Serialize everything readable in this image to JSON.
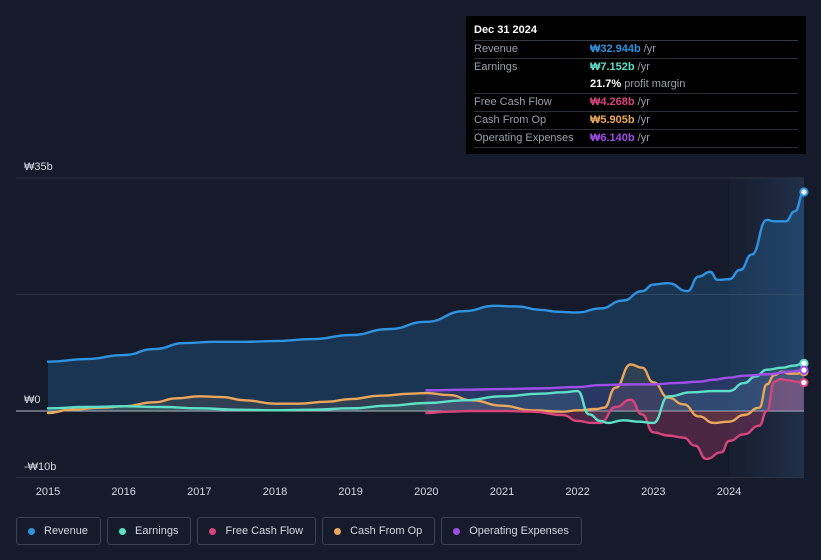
{
  "tooltip": {
    "date": "Dec 31 2024",
    "rows": [
      {
        "label": "Revenue",
        "value": "₩32.944b",
        "unit": "/yr"
      },
      {
        "label": "Earnings",
        "value": "₩7.152b",
        "unit": "/yr"
      },
      {
        "label": "",
        "value": "21.7%",
        "unit": "profit margin"
      },
      {
        "label": "Free Cash Flow",
        "value": "₩4.268b",
        "unit": "/yr"
      },
      {
        "label": "Cash From Op",
        "value": "₩5.905b",
        "unit": "/yr"
      },
      {
        "label": "Operating Expenses",
        "value": "₩6.140b",
        "unit": "/yr"
      }
    ]
  },
  "colors": {
    "revenue": "#2e93e0",
    "earnings": "#5ee0c8",
    "free_cash_flow": "#d6457c",
    "cash_from_op": "#eaa65a",
    "operating_expenses": "#9f4ee8"
  },
  "chart_data": {
    "type": "line",
    "title": "",
    "xlabel": "",
    "ylabel": "",
    "y_tick_labels": [
      "₩35b",
      "₩0",
      "-₩10b"
    ],
    "x_tick_labels": [
      "2015",
      "2016",
      "2017",
      "2018",
      "2019",
      "2020",
      "2021",
      "2022",
      "2023",
      "2024"
    ],
    "x_ticks": [
      2015,
      2016,
      2017,
      2018,
      2019,
      2020,
      2021,
      2022,
      2023,
      2024
    ],
    "ylim": [
      -10,
      35
    ],
    "xlim": [
      2014.55,
      2024.99
    ],
    "highlight_start": 2024.0,
    "series": [
      {
        "name": "Revenue",
        "key": "revenue",
        "x": [
          2015.0,
          2015.5,
          2016.0,
          2016.4,
          2016.8,
          2017.2,
          2017.6,
          2018.0,
          2018.5,
          2019.0,
          2019.5,
          2020.0,
          2020.5,
          2020.9,
          2021.2,
          2021.5,
          2021.75,
          2022.0,
          2022.3,
          2022.6,
          2022.85,
          2023.0,
          2023.2,
          2023.45,
          2023.6,
          2023.75,
          2023.85,
          2024.0,
          2024.15,
          2024.3,
          2024.5,
          2024.6,
          2024.75,
          2024.87,
          2024.99
        ],
        "y": [
          7.4,
          7.8,
          8.4,
          9.3,
          10.2,
          10.4,
          10.4,
          10.5,
          10.8,
          11.4,
          12.3,
          13.4,
          15.0,
          15.8,
          15.7,
          15.2,
          14.9,
          14.8,
          15.4,
          16.6,
          18.0,
          19.0,
          19.2,
          18.0,
          20.2,
          20.9,
          19.7,
          19.8,
          21.2,
          23.5,
          28.7,
          28.5,
          28.5,
          30.0,
          32.9
        ]
      },
      {
        "name": "Earnings",
        "key": "earnings",
        "x": [
          2015.0,
          2015.5,
          2016.0,
          2016.5,
          2017.0,
          2017.5,
          2018.0,
          2018.5,
          2019.0,
          2019.5,
          2020.0,
          2020.5,
          2021.0,
          2021.5,
          2021.8,
          2022.0,
          2022.15,
          2022.3,
          2022.4,
          2022.6,
          2022.8,
          2023.0,
          2023.2,
          2023.5,
          2023.8,
          2024.0,
          2024.2,
          2024.35,
          2024.5,
          2024.7,
          2024.85,
          2024.99
        ],
        "y": [
          0.4,
          0.6,
          0.7,
          0.6,
          0.4,
          0.2,
          0.1,
          0.2,
          0.4,
          0.8,
          1.2,
          1.6,
          2.2,
          2.6,
          2.8,
          3.0,
          -0.5,
          -1.5,
          -1.8,
          -1.4,
          -1.6,
          -1.8,
          2.2,
          2.8,
          3.0,
          3.0,
          4.2,
          5.2,
          6.2,
          6.5,
          6.8,
          7.15
        ]
      },
      {
        "name": "Free Cash Flow",
        "key": "free_cash_flow",
        "x": [
          2020.0,
          2020.3,
          2020.6,
          2021.0,
          2021.4,
          2021.8,
          2022.0,
          2022.2,
          2022.3,
          2022.5,
          2022.7,
          2022.85,
          2023.0,
          2023.2,
          2023.4,
          2023.55,
          2023.7,
          2023.9,
          2024.0,
          2024.2,
          2024.4,
          2024.5,
          2024.6,
          2024.68,
          2024.78,
          2024.9,
          2024.99
        ],
        "y": [
          -0.3,
          -0.1,
          0.0,
          0.0,
          -0.1,
          -0.6,
          -1.5,
          -1.8,
          -1.8,
          0.6,
          1.7,
          -0.5,
          -3.2,
          -3.7,
          -4.0,
          -5.2,
          -7.2,
          -6.2,
          -4.5,
          -3.5,
          -2.2,
          0.0,
          4.4,
          4.8,
          4.6,
          4.4,
          4.27
        ]
      },
      {
        "name": "Cash From Op",
        "key": "cash_from_op",
        "x": [
          2015.0,
          2015.3,
          2015.7,
          2016.0,
          2016.4,
          2016.7,
          2017.0,
          2017.3,
          2017.6,
          2018.0,
          2018.3,
          2018.7,
          2019.0,
          2019.4,
          2019.8,
          2020.0,
          2020.3,
          2020.6,
          2021.0,
          2021.4,
          2021.8,
          2022.0,
          2022.25,
          2022.35,
          2022.5,
          2022.7,
          2022.85,
          2023.0,
          2023.2,
          2023.4,
          2023.6,
          2023.8,
          2024.0,
          2024.2,
          2024.4,
          2024.5,
          2024.6,
          2024.7,
          2024.8,
          2024.9,
          2024.99
        ],
        "y": [
          -0.3,
          0.2,
          0.5,
          0.7,
          1.3,
          1.9,
          2.2,
          2.1,
          1.6,
          1.1,
          1.1,
          1.4,
          1.8,
          2.3,
          2.6,
          2.7,
          2.4,
          1.6,
          0.8,
          0.1,
          -0.1,
          0.1,
          0.3,
          0.5,
          3.5,
          7.0,
          6.5,
          4.3,
          2.0,
          1.0,
          -0.8,
          -1.8,
          -1.6,
          -0.6,
          0.5,
          4.0,
          5.4,
          5.9,
          5.6,
          5.6,
          5.9
        ]
      },
      {
        "name": "Operating Expenses",
        "key": "operating_expenses",
        "x": [
          2020.0,
          2020.5,
          2021.0,
          2021.5,
          2022.0,
          2022.3,
          2022.7,
          2023.0,
          2023.3,
          2023.6,
          2023.8,
          2024.0,
          2024.2,
          2024.5,
          2024.8,
          2024.99
        ],
        "y": [
          3.1,
          3.2,
          3.3,
          3.4,
          3.6,
          3.9,
          4.0,
          4.0,
          4.2,
          4.4,
          4.7,
          5.0,
          5.3,
          5.5,
          5.9,
          6.14
        ]
      }
    ]
  }
}
